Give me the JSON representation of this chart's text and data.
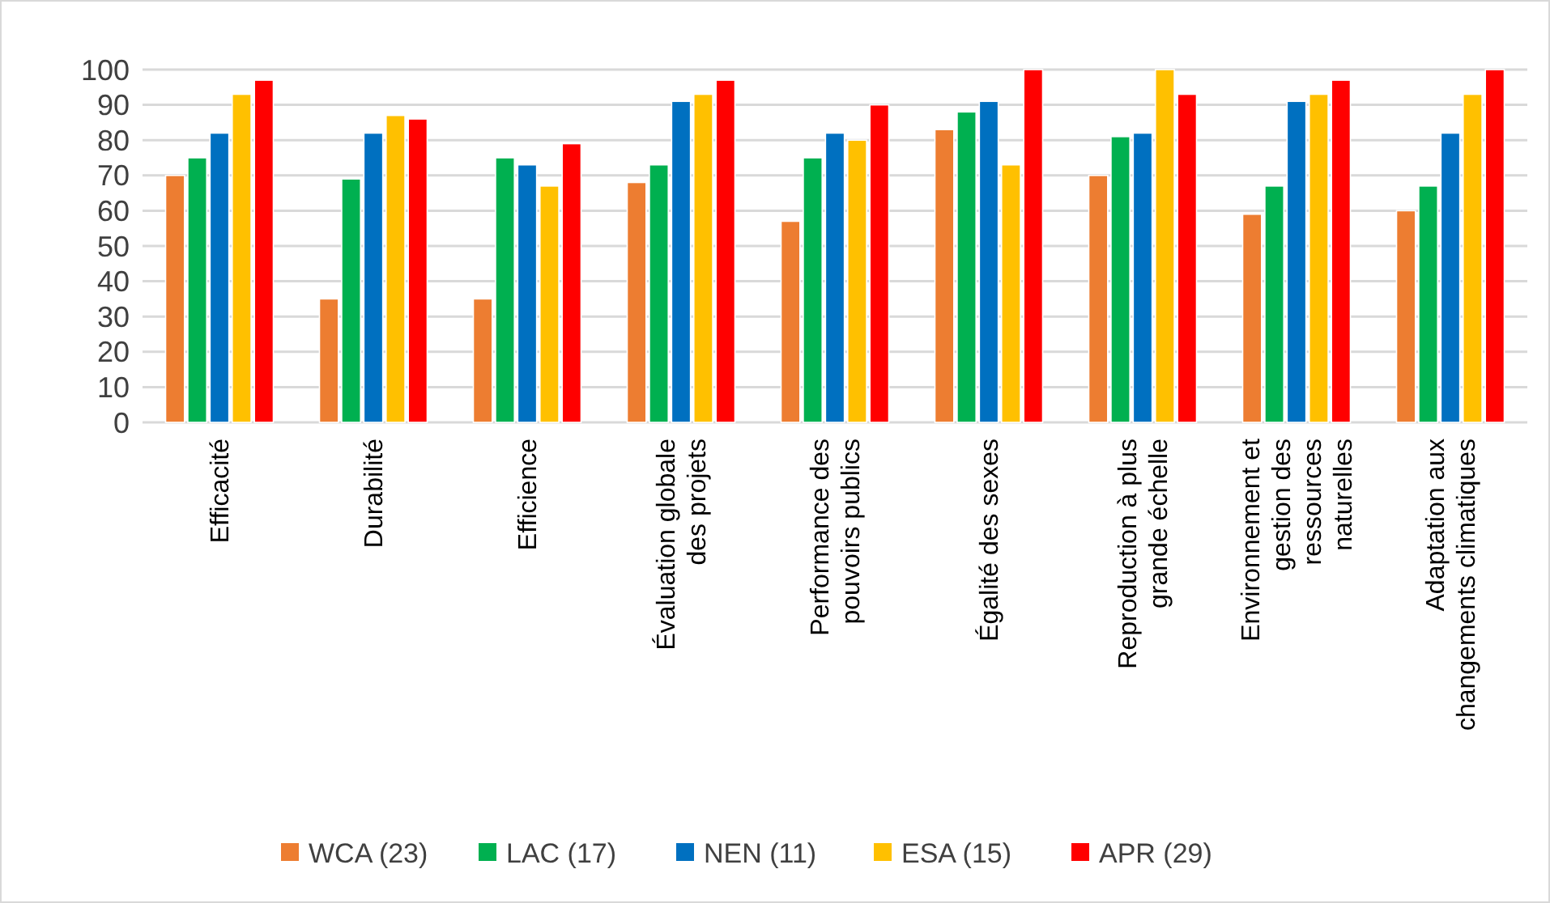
{
  "chart_data": {
    "type": "bar",
    "categories": [
      "Efficacité",
      "Durabilité",
      "Efficience",
      "Évaluation globale\ndes projets",
      "Performance des\npouvoirs publics",
      "Égalité des sexes",
      "Reproduction à plus\ngrande échelle",
      "Environnement et\ngestion des\nressources\nnaturelles",
      "Adaptation aux\nchangements climatiques"
    ],
    "series": [
      {
        "name": "WCA (23)",
        "color": "#ed7d31",
        "values": [
          70,
          35,
          35,
          68,
          57,
          83,
          70,
          59,
          60
        ]
      },
      {
        "name": "LAC (17)",
        "color": "#00b050",
        "values": [
          75,
          69,
          75,
          73,
          75,
          88,
          81,
          67,
          67
        ]
      },
      {
        "name": "NEN (11)",
        "color": "#0070c0",
        "values": [
          82,
          82,
          73,
          91,
          82,
          91,
          82,
          91,
          82
        ]
      },
      {
        "name": "ESA (15)",
        "color": "#ffc000",
        "values": [
          93,
          87,
          67,
          93,
          80,
          73,
          100,
          93,
          93
        ]
      },
      {
        "name": "APR (29)",
        "color": "#ff0000",
        "values": [
          97,
          86,
          79,
          97,
          90,
          100,
          93,
          97,
          100
        ]
      }
    ],
    "ylim": [
      0,
      100
    ],
    "yticks": [
      0,
      10,
      20,
      30,
      40,
      50,
      60,
      70,
      80,
      90,
      100
    ],
    "grid": "y",
    "legend": "bottom"
  }
}
